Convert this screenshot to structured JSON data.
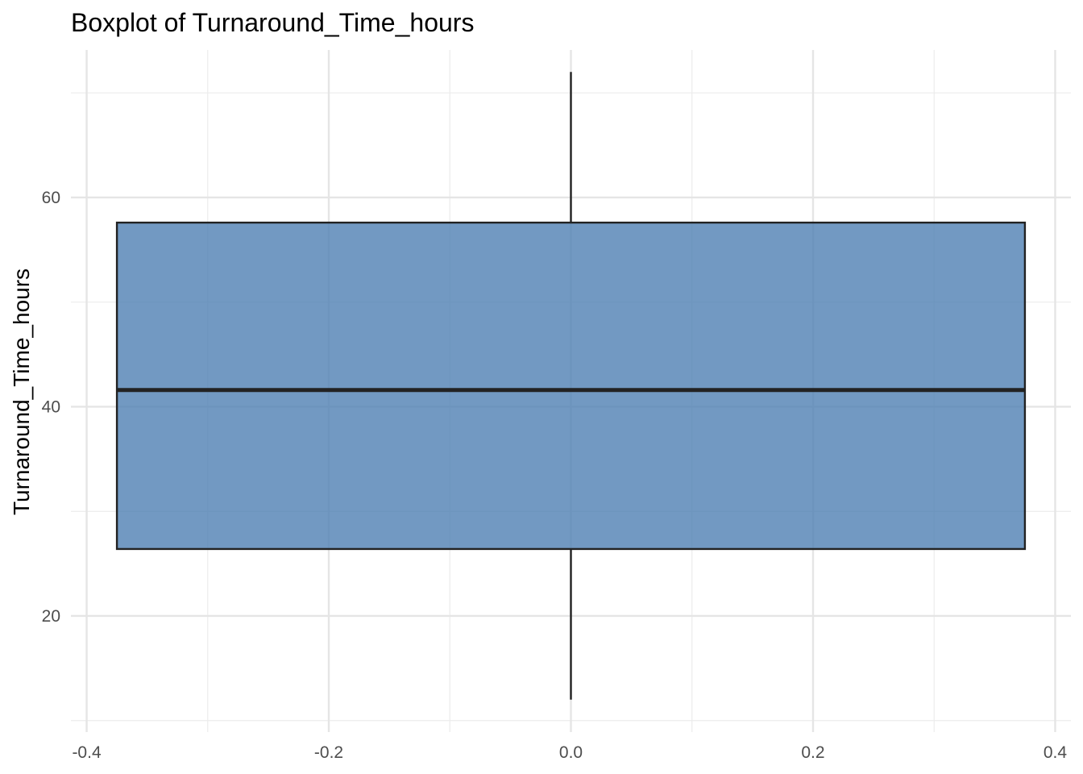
{
  "chart_data": {
    "type": "boxplot",
    "title": "Boxplot of Turnaround_Time_hours",
    "xlabel": "",
    "ylabel": "Turnaround_Time_hours",
    "x_ticks": [
      "-0.4",
      "-0.2",
      "0.0",
      "0.2",
      "0.4"
    ],
    "x_tick_values": [
      -0.4,
      -0.2,
      0.0,
      0.2,
      0.4
    ],
    "y_ticks": [
      "20",
      "40",
      "60"
    ],
    "y_tick_values": [
      20,
      40,
      60
    ],
    "xlim": [
      -0.413,
      0.413
    ],
    "ylim": [
      8.9,
      74.1
    ],
    "grid": true,
    "box": {
      "x": 0.0,
      "width": 0.75,
      "whisker_low": 12,
      "q1": 26.4,
      "median": 41.6,
      "q3": 57.6,
      "whisker_high": 72,
      "fill": "#4f7fb3",
      "outline": "#222222"
    }
  }
}
